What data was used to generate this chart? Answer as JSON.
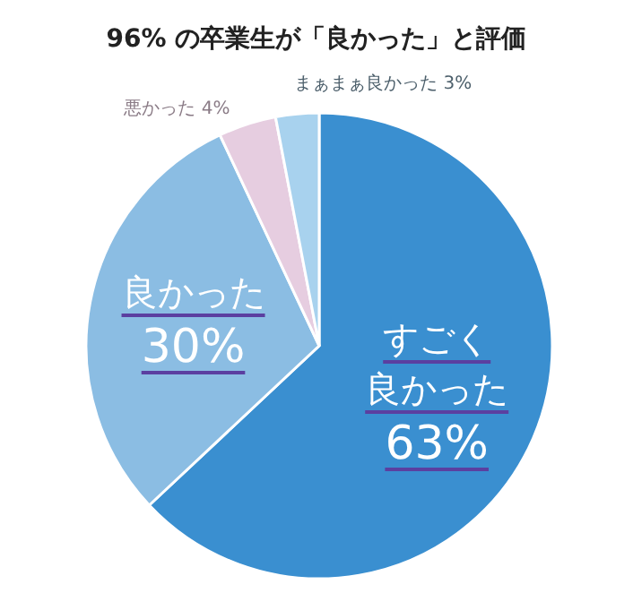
{
  "chart_data": {
    "type": "pie",
    "title": "96% の卒業生が「良かった」と評価",
    "categories": [
      "すごく良かった",
      "良かった",
      "悪かった",
      "まぁまぁ良かった"
    ],
    "values": [
      63,
      30,
      4,
      3
    ],
    "value_labels": [
      "63%",
      "30%",
      "4%",
      "3%"
    ],
    "colors": [
      "#3a8fd0",
      "#8bbde3",
      "#e6cde0",
      "#a8d2ee"
    ],
    "legend": false
  }
}
